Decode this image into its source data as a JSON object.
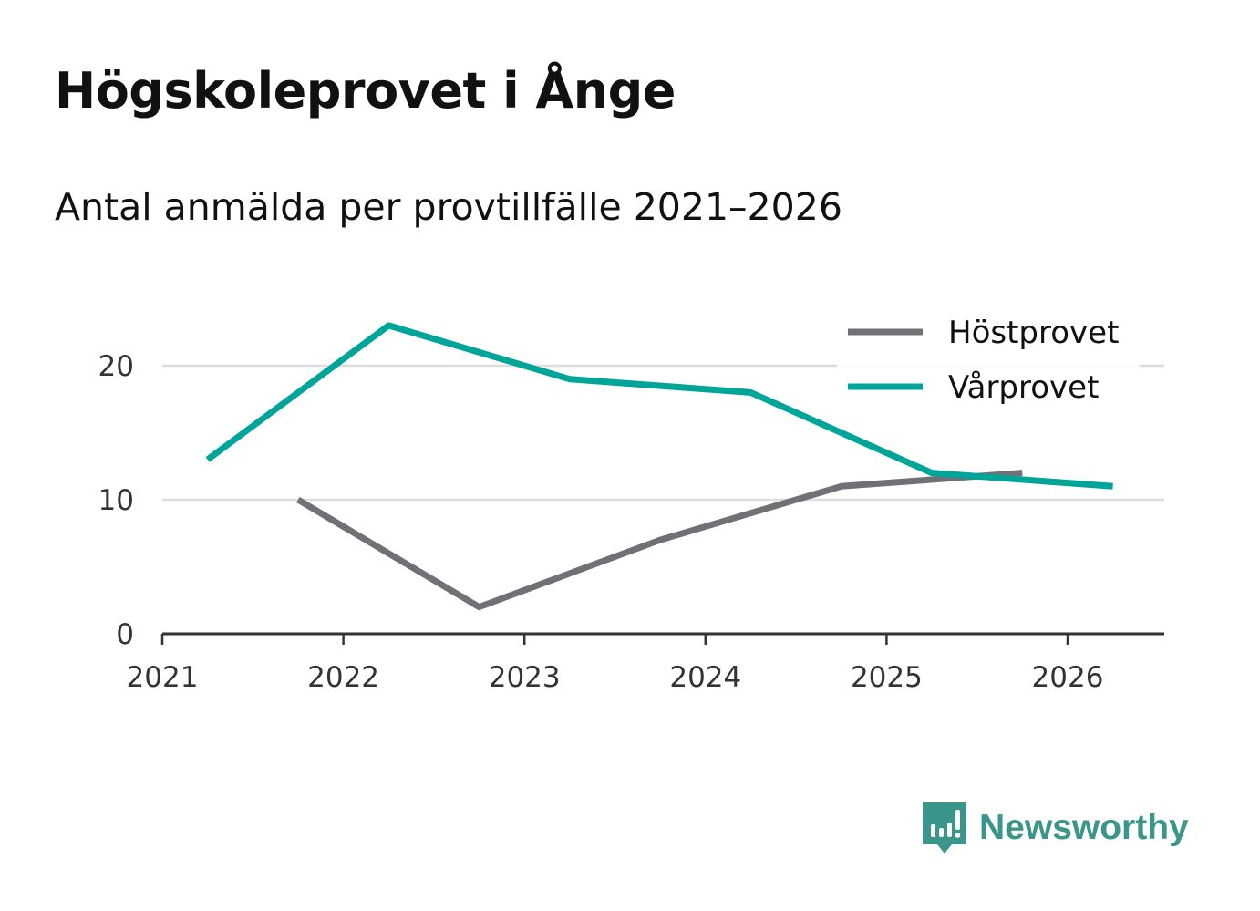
{
  "title": "Högskoleprovet i Ånge",
  "subtitle": "Antal anmälda per provtillfälle 2021–2026",
  "brand": {
    "name": "Newsworthy",
    "color": "#3a958a",
    "icon": "newsworthy-logo-icon"
  },
  "chart_data": {
    "type": "line",
    "title": "Högskoleprovet i Ånge",
    "subtitle": "Antal anmälda per provtillfälle 2021–2026",
    "xlabel": "",
    "ylabel": "",
    "xlim": [
      2021,
      2026.5
    ],
    "ylim": [
      0,
      23
    ],
    "x_ticks": [
      2021,
      2022,
      2023,
      2024,
      2025,
      2026
    ],
    "x_tick_labels": [
      "2021",
      "2022",
      "2023",
      "2024",
      "2025",
      "2026"
    ],
    "y_ticks": [
      0,
      10,
      20
    ],
    "y_tick_labels": [
      "0",
      "10",
      "20"
    ],
    "grid": "horizontal",
    "legend_position": "top-right",
    "series": [
      {
        "name": "Höstprovet",
        "color": "#717076",
        "x": [
          2021.75,
          2022.75,
          2023.75,
          2024.75,
          2025.75
        ],
        "values": [
          10,
          2,
          7,
          11,
          12
        ]
      },
      {
        "name": "Vårprovet",
        "color": "#00a599",
        "x": [
          2021.25,
          2022.25,
          2023.25,
          2024.25,
          2025.25,
          2026.25
        ],
        "values": [
          13,
          23,
          19,
          18,
          12,
          11
        ]
      }
    ]
  }
}
